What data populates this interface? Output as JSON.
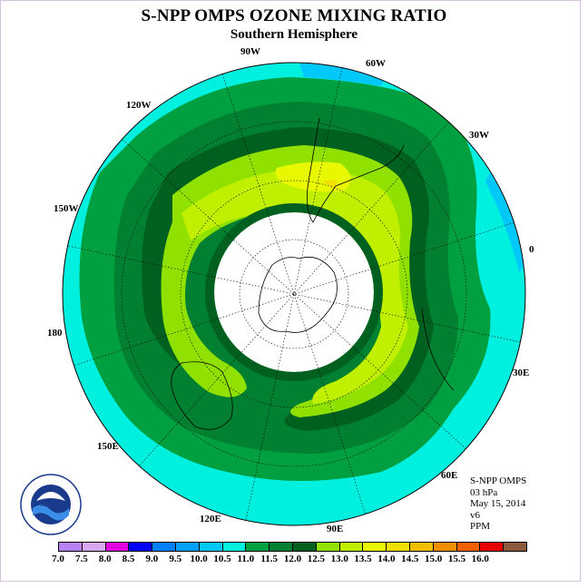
{
  "header": {
    "title": "S-NPP OMPS OZONE MIXING RATIO",
    "subtitle": "Southern Hemisphere"
  },
  "map_labels": {
    "lon_90w": "90W",
    "lon_60w": "60W",
    "lon_30w": "30W",
    "lon_0": "0",
    "lon_30e": "30E",
    "lon_60e": "60E",
    "lon_90e": "90E",
    "lon_120e": "120E",
    "lon_150e": "150E",
    "lon_180": "180",
    "lon_150w": "150W",
    "lon_120w": "120W"
  },
  "info": {
    "product": "S-NPP OMPS",
    "level": "03 hPa",
    "date": "May 15, 2014",
    "version": "v6",
    "units": "PPM"
  },
  "logo": {
    "text": "NOAA",
    "ring_text": "NATIONAL OCEANIC AND ATMOSPHERIC ADMINISTRATION · U.S. DEPARTMENT OF COMMERCE"
  },
  "colorbar": {
    "colors": [
      "#b880f0",
      "#d8a8f0",
      "#e000e0",
      "#0000ff",
      "#0080ff",
      "#00a0ff",
      "#00c8f8",
      "#00f0e0",
      "#00a040",
      "#008030",
      "#006020",
      "#90e000",
      "#c0f000",
      "#e8f800",
      "#f0e000",
      "#f0c000",
      "#f09000",
      "#f06000",
      "#e80000",
      "#8b5a3c"
    ],
    "ticks": [
      "7.0",
      "7.5",
      "8.0",
      "8.5",
      "9.0",
      "9.5",
      "10.0",
      "10.5",
      "11.0",
      "11.5",
      "12.0",
      "12.5",
      "13.0",
      "13.5",
      "14.0",
      "14.5",
      "15.0",
      "15.5",
      "16.0"
    ]
  },
  "chart_data": {
    "type": "heatmap",
    "title": "S-NPP OMPS OZONE MIXING RATIO",
    "subtitle": "Southern Hemisphere",
    "units": "PPM",
    "level": "03 hPa",
    "date": "May 15, 2014",
    "projection": "south-polar stereographic",
    "legend_placement": "bottom",
    "levels": [
      7.0,
      7.5,
      8.0,
      8.5,
      9.0,
      9.5,
      10.0,
      10.5,
      11.0,
      11.5,
      12.0,
      12.5,
      13.0,
      13.5,
      14.0,
      14.5,
      15.0,
      15.5,
      16.0
    ]
  }
}
